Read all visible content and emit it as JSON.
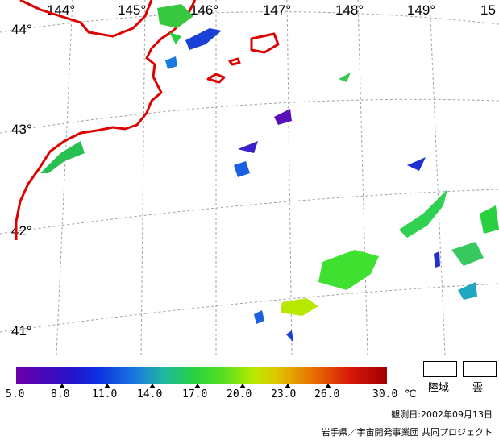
{
  "map": {
    "lat_labels": [
      "44°",
      "43°",
      "42°",
      "41°"
    ],
    "lon_labels": [
      "144°",
      "145°",
      "146°",
      "147°",
      "148°",
      "149°",
      "15"
    ],
    "coastline_color": "#e00000",
    "grid_color": "#a0a0a0"
  },
  "colorbar": {
    "labels": [
      "5.0",
      "8.0",
      "11.0",
      "14.0",
      "17.0",
      "20.0",
      "23.0",
      "26.0",
      "30.0"
    ],
    "unit": "℃",
    "colors": [
      "#6a00a8",
      "#2a10c8",
      "#0a30e0",
      "#1a78e0",
      "#20b8a0",
      "#28d040",
      "#58e020",
      "#b8e800",
      "#e0c800",
      "#e87000",
      "#d81808",
      "#a00000"
    ]
  },
  "legend": {
    "land": "陸域",
    "cloud": "雲"
  },
  "observation_date": "観測日:2002年09月13日",
  "credit": "岩手県／宇宙開発事業団 共同プロジェクト"
}
